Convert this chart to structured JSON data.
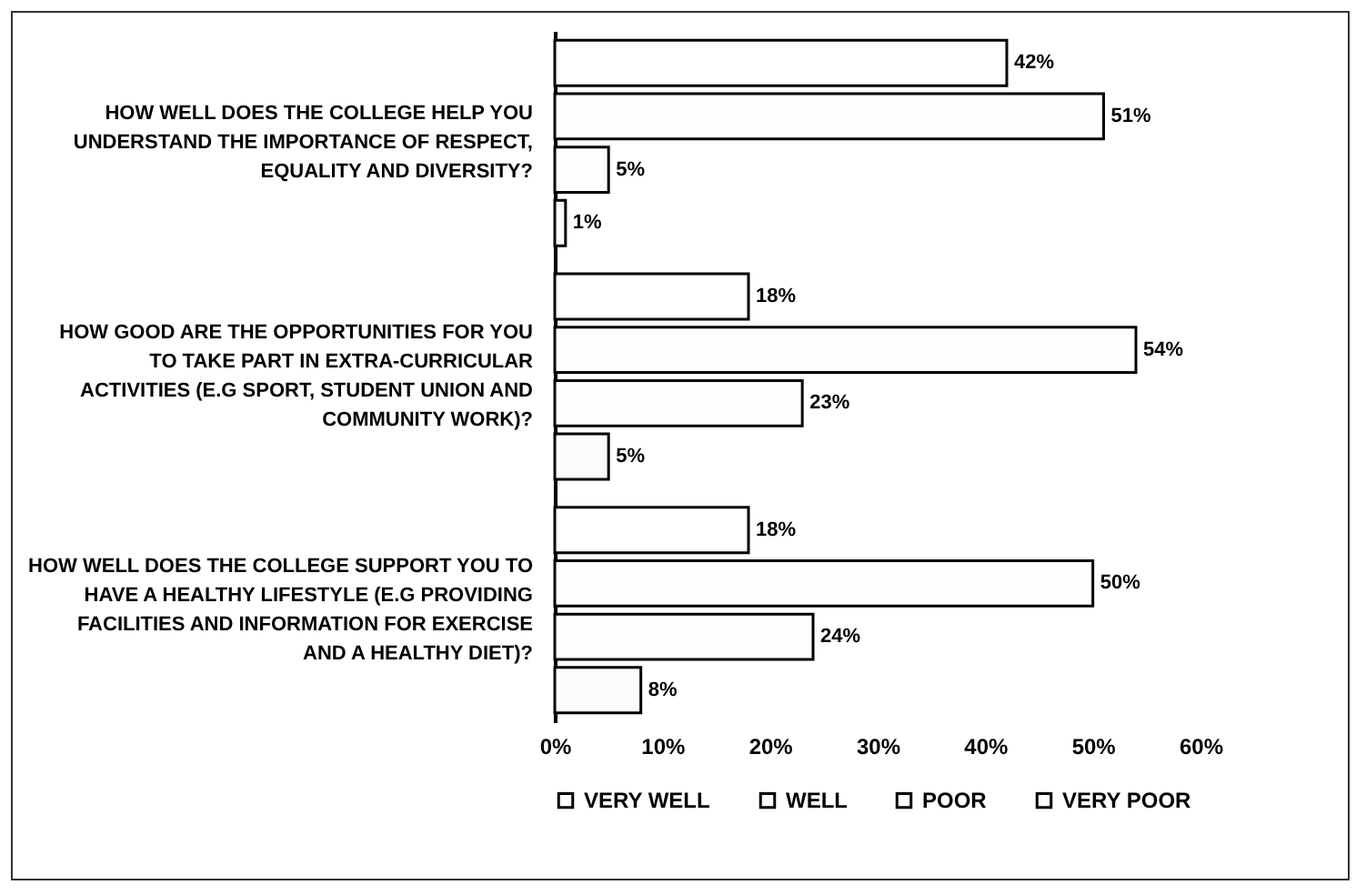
{
  "chart_data": {
    "type": "bar",
    "orientation": "horizontal",
    "categories": [
      "HOW WELL DOES THE COLLEGE HELP YOU UNDERSTAND THE IMPORTANCE OF RESPECT, EQUALITY AND DIVERSITY?",
      "HOW GOOD ARE THE OPPORTUNITIES FOR YOU TO TAKE PART IN EXTRA-CURRICULAR ACTIVITIES (E.G SPORT, STUDENT UNION AND COMMUNITY WORK)?",
      "HOW WELL DOES THE COLLEGE SUPPORT YOU TO HAVE A HEALTHY LIFESTYLE (E.G PROVIDING FACILITIES AND INFORMATION FOR EXERCISE AND A HEALTHY DIET)?"
    ],
    "series": [
      {
        "name": "VERY WELL",
        "color": "#ffffff",
        "values": [
          42,
          18,
          18
        ],
        "value_labels": [
          "42%",
          "18%",
          "18%"
        ]
      },
      {
        "name": "WELL",
        "color": "#fefefe",
        "values": [
          51,
          54,
          50
        ],
        "value_labels": [
          "51%",
          "54%",
          "50%"
        ]
      },
      {
        "name": "POOR",
        "color": "#fdfdfd",
        "values": [
          5,
          23,
          24
        ],
        "value_labels": [
          "5%",
          "23%",
          "24%"
        ]
      },
      {
        "name": "VERY POOR",
        "color": "#fcfcfc",
        "values": [
          1,
          5,
          8
        ],
        "value_labels": [
          "1%",
          "5%",
          "8%"
        ]
      }
    ],
    "xlim": [
      0,
      60
    ],
    "xticks": [
      {
        "value": 0,
        "label": "0%"
      },
      {
        "value": 10,
        "label": "10%"
      },
      {
        "value": 20,
        "label": "20%"
      },
      {
        "value": 30,
        "label": "30%"
      },
      {
        "value": 40,
        "label": "40%"
      },
      {
        "value": 50,
        "label": "50%"
      },
      {
        "value": 60,
        "label": "60%"
      }
    ],
    "grid": false,
    "legend": "bottom left"
  }
}
